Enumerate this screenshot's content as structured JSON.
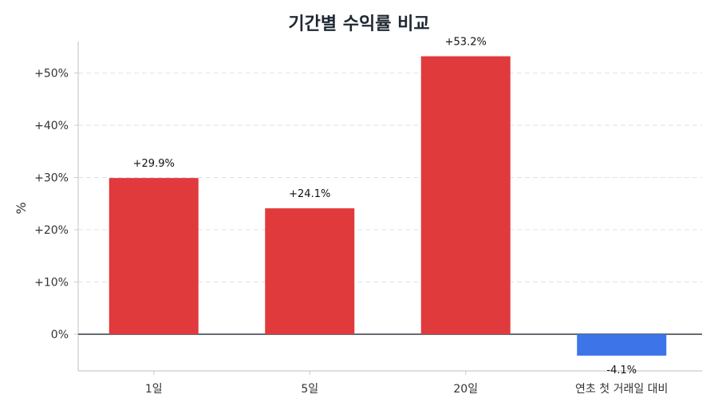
{
  "chart_data": {
    "type": "bar",
    "title": "기간별 수익률 비교",
    "ylabel": "%",
    "xlabel": "",
    "categories": [
      "1일",
      "5일",
      "20일",
      "연초 첫 거래일 대비"
    ],
    "values": [
      29.9,
      24.1,
      53.2,
      -4.1
    ],
    "value_labels": [
      "+29.9%",
      "+24.1%",
      "+53.2%",
      "-4.1%"
    ],
    "ylim": [
      -7,
      56
    ],
    "yticks": [
      0,
      10,
      20,
      30,
      40,
      50
    ],
    "ytick_labels": [
      "0%",
      "+10%",
      "+20%",
      "+30%",
      "+40%",
      "+50%"
    ],
    "grid": true,
    "colors": {
      "positive": "#e03a3c",
      "negative": "#3d74e8",
      "grid": "#dfe3ea",
      "axis": "#c8ccd3",
      "zero_line": "#333a44"
    }
  }
}
